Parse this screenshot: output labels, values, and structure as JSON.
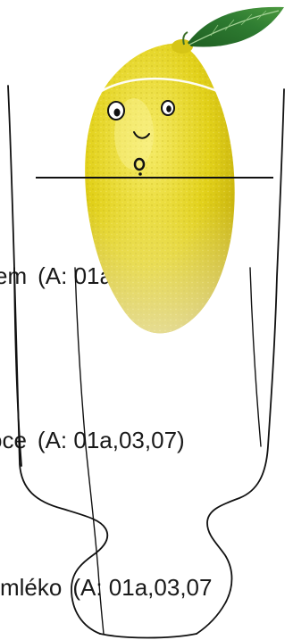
{
  "menu": {
    "items": [
      {
        "name": "em",
        "allergens": "(A: 01a,07,11)"
      },
      {
        "name": "oce",
        "allergens": "(A: 01a,03,07)"
      },
      {
        "name": "mléko",
        "allergens": "(A: 01a,03,07"
      }
    ]
  },
  "illustration": {
    "subject": "lemon-in-glass",
    "lemon_color": "#e2d11a",
    "leaf_color": "#2f7d32",
    "outline_color": "#111111",
    "eye_icons": [
      "eye-left-icon",
      "eye-right-icon"
    ]
  }
}
